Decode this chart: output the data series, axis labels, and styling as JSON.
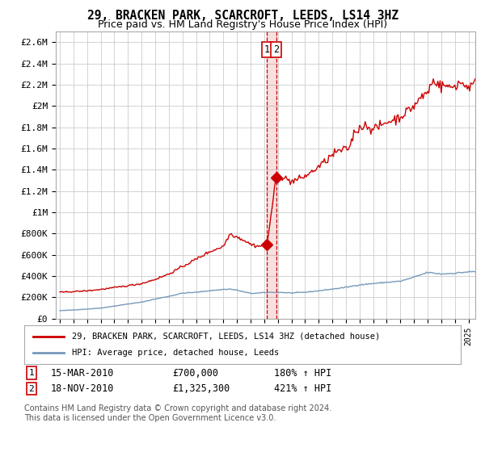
{
  "title": "29, BRACKEN PARK, SCARCROFT, LEEDS, LS14 3HZ",
  "subtitle": "Price paid vs. HM Land Registry's House Price Index (HPI)",
  "legend_line1": "29, BRACKEN PARK, SCARCROFT, LEEDS, LS14 3HZ (detached house)",
  "legend_line2": "HPI: Average price, detached house, Leeds",
  "sale1_date": "15-MAR-2010",
  "sale1_price": "£700,000",
  "sale1_hpi": "180% ↑ HPI",
  "sale1_year": 2010.21,
  "sale1_price_val": 700000,
  "sale2_date": "18-NOV-2010",
  "sale2_price": "£1,325,300",
  "sale2_hpi": "421% ↑ HPI",
  "sale2_year": 2010.88,
  "sale2_price_val": 1325300,
  "footnote": "Contains HM Land Registry data © Crown copyright and database right 2024.\nThis data is licensed under the Open Government Licence v3.0.",
  "ylim": [
    0,
    2700000
  ],
  "xlim_start": 1994.7,
  "xlim_end": 2025.5,
  "background_color": "#ffffff",
  "grid_color": "#cccccc",
  "red_color": "#cc0000",
  "blue_color": "#7799bb",
  "dashed_color": "#cc0000",
  "yticks": [
    0,
    200000,
    400000,
    600000,
    800000,
    1000000,
    1200000,
    1400000,
    1600000,
    1800000,
    2000000,
    2200000,
    2400000,
    2600000
  ],
  "ytick_labels": [
    "£0",
    "£200K",
    "£400K",
    "£600K",
    "£800K",
    "£1M",
    "£1.2M",
    "£1.4M",
    "£1.6M",
    "£1.8M",
    "£2M",
    "£2.2M",
    "£2.4M",
    "£2.6M"
  ]
}
